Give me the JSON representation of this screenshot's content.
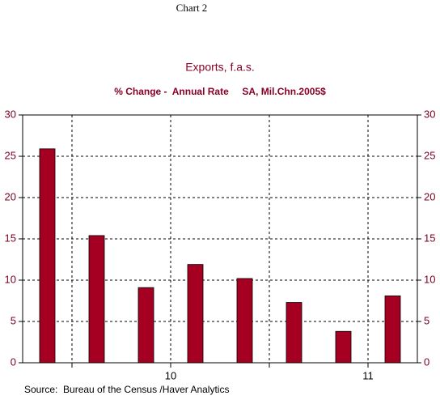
{
  "header": "Chart 2",
  "chart_data": {
    "type": "bar",
    "title": "Exports, f.a.s.",
    "subtitle": "% Change -  Annual Rate     SA, Mil.Chn.2005$",
    "categories": [
      null,
      null,
      null,
      null,
      null,
      null,
      null,
      null
    ],
    "x_labels": [
      "10",
      "11"
    ],
    "values": [
      25.9,
      15.4,
      9.1,
      11.9,
      10.2,
      7.3,
      3.8,
      8.1
    ],
    "color": "#a50021",
    "ylim": [
      0,
      30
    ],
    "yticks": [
      0,
      5,
      10,
      15,
      20,
      25,
      30
    ],
    "grid": true
  },
  "source": "Source:  Bureau of the Census /Haver Analytics"
}
